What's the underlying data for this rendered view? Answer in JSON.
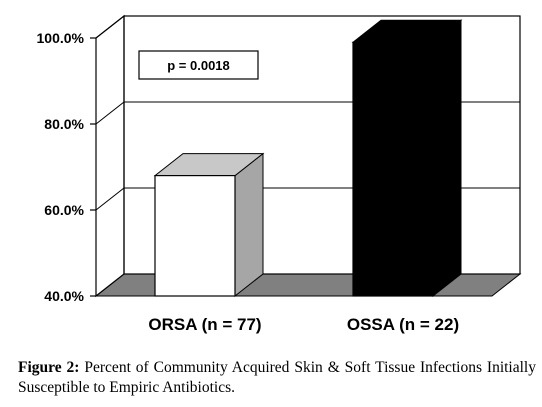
{
  "chart_data": {
    "type": "bar",
    "categories": [
      "ORSA (n = 77)",
      "OSSA (n = 22)"
    ],
    "values": [
      68.0,
      99.0
    ],
    "bar_colors": [
      "#ffffff",
      "#000000"
    ],
    "ylim": [
      40,
      100
    ],
    "yticks": [
      40,
      60,
      80,
      100
    ],
    "ytick_labels": [
      "40.0%",
      "60.0%",
      "80.0%",
      "100.0%"
    ],
    "grid": true,
    "style": "3d",
    "annotation": "p = 0.0018"
  },
  "caption": {
    "label": "Figure 2:",
    "text": " Percent of Community Acquired Skin & Soft Tissue Infections Initially Susceptible to Empiric Antibiotics."
  }
}
